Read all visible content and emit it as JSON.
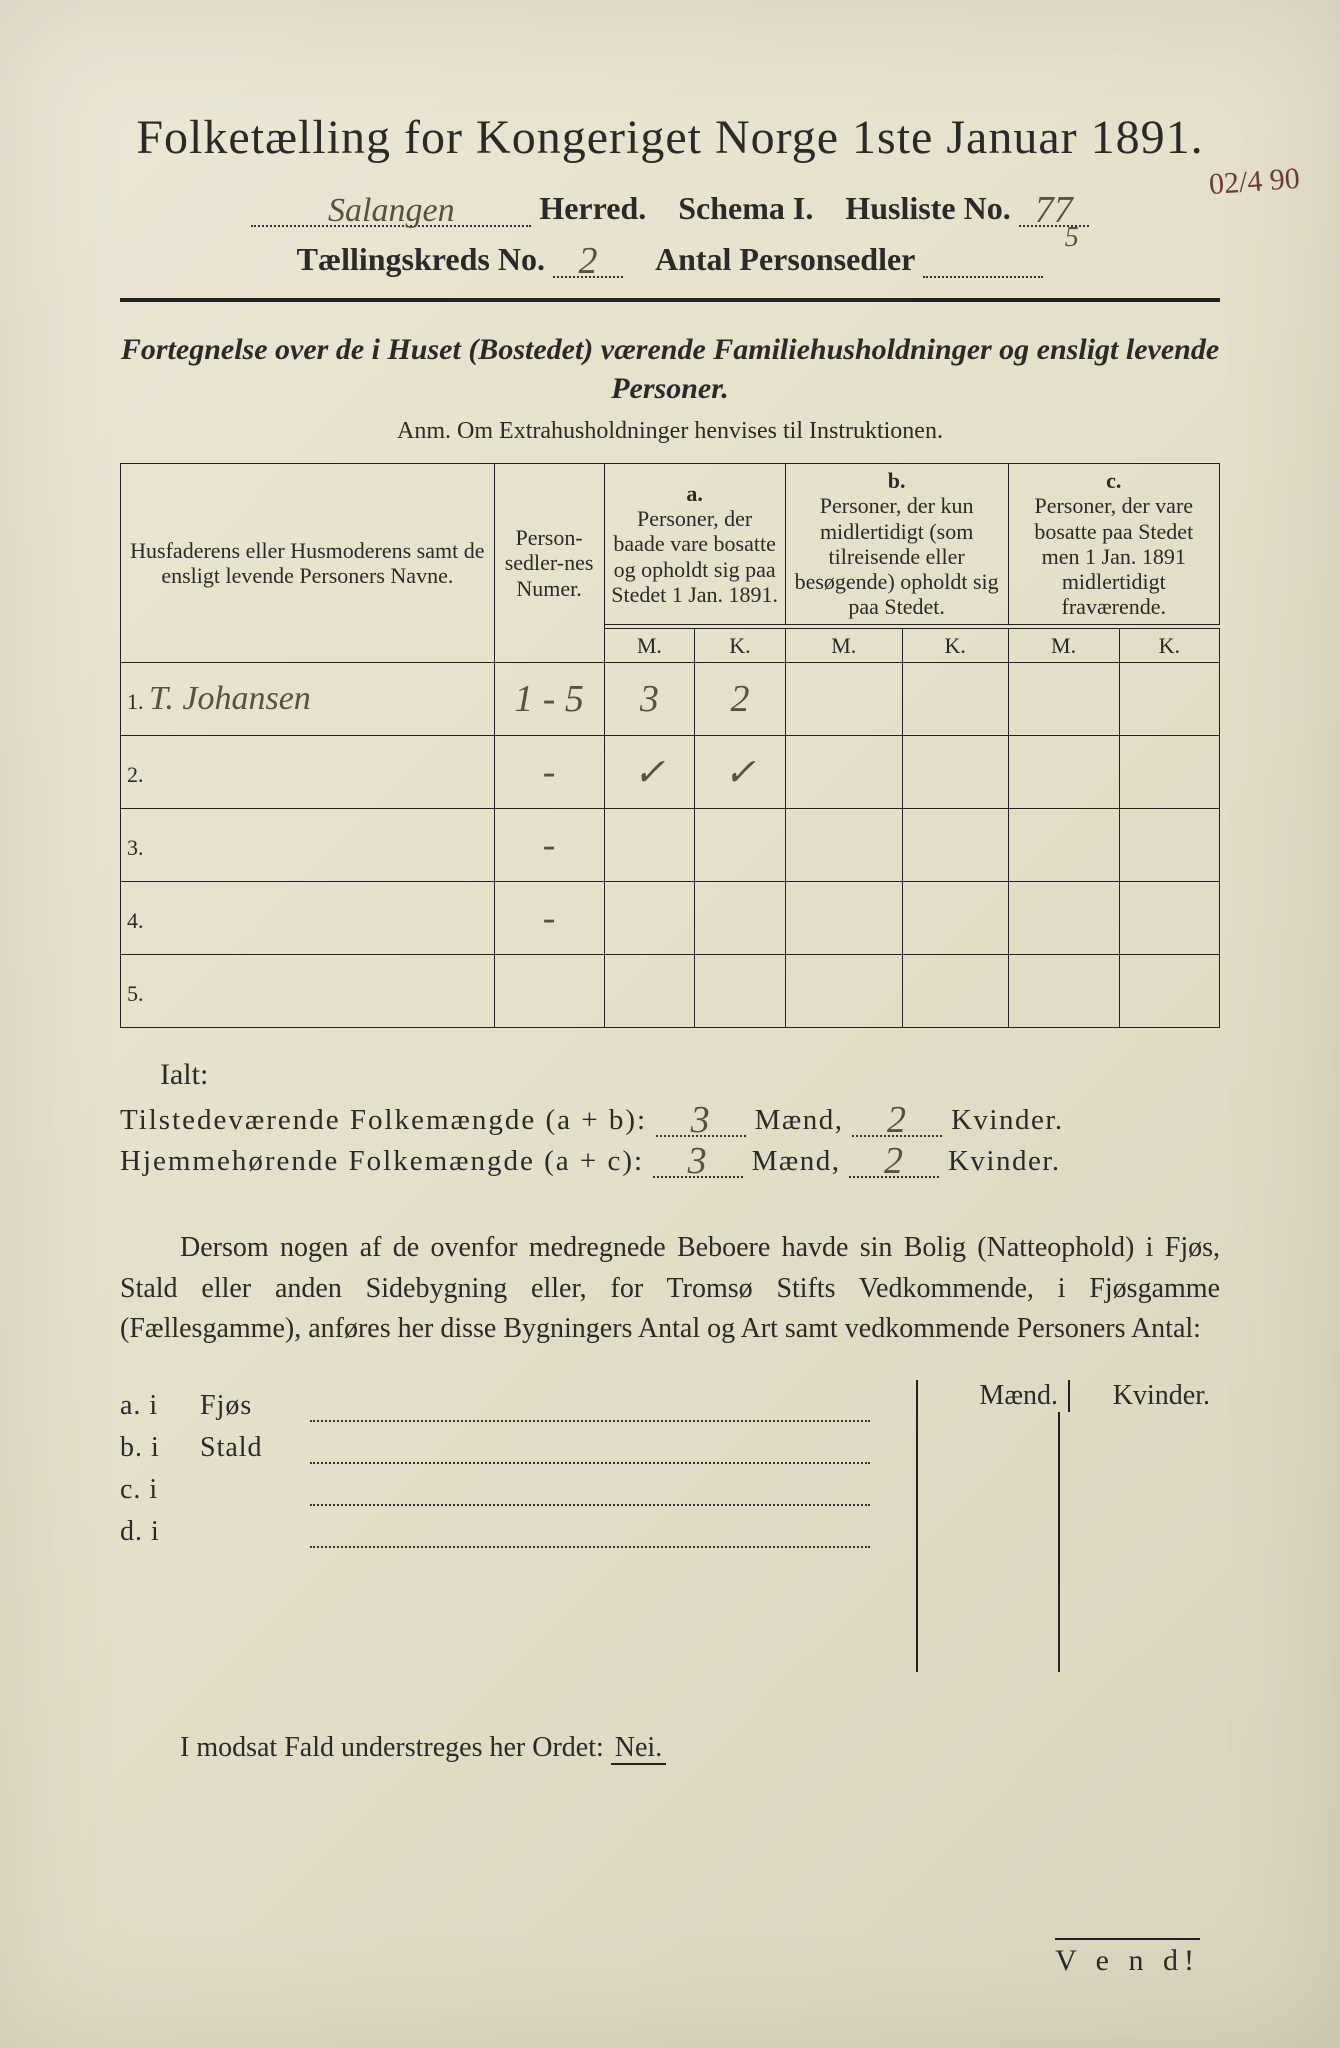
{
  "colors": {
    "paper": "#e8e4d0",
    "ink": "#2a2a2a",
    "handwriting": "#5a5040",
    "margin_note": "#6b3a3a"
  },
  "header": {
    "title": "Folketælling for Kongeriget Norge 1ste Januar 1891.",
    "herred_label": "Herred.",
    "herred_value": "Salangen",
    "schema_label": "Schema I.",
    "husliste_label": "Husliste No.",
    "husliste_value": "77",
    "husliste_sub": "5",
    "kreds_label": "Tællingskreds No.",
    "kreds_value": "2",
    "antal_label": "Antal Personsedler",
    "antal_value": "",
    "margin_note": "02/4 90"
  },
  "intro": {
    "fortegnelse": "Fortegnelse over de i Huset (Bostedet) værende Familiehusholdninger og ensligt levende Personer.",
    "anm": "Anm.  Om Extrahusholdninger henvises til Instruktionen."
  },
  "table": {
    "col_names": "Husfaderens eller Husmoderens samt de ensligt levende Personers Navne.",
    "col_personsedler": "Person-sedler-nes Numer.",
    "col_a_letter": "a.",
    "col_a": "Personer, der baade vare bosatte og opholdt sig paa Stedet 1 Jan. 1891.",
    "col_b_letter": "b.",
    "col_b": "Personer, der kun midlertidigt (som tilreisende eller besøgende) opholdt sig paa Stedet.",
    "col_c_letter": "c.",
    "col_c": "Personer, der vare bosatte paa Stedet men 1 Jan. 1891 midlertidigt fraværende.",
    "m": "M.",
    "k": "K.",
    "rows": [
      {
        "n": "1.",
        "name": "T. Johansen",
        "ps": "1 - 5",
        "am": "3",
        "ak": "2",
        "bm": "",
        "bk": "",
        "cm": "",
        "ck": ""
      },
      {
        "n": "2.",
        "name": "",
        "ps": "-",
        "am": "✓",
        "ak": "✓",
        "bm": "",
        "bk": "",
        "cm": "",
        "ck": ""
      },
      {
        "n": "3.",
        "name": "",
        "ps": "-",
        "am": "",
        "ak": "",
        "bm": "",
        "bk": "",
        "cm": "",
        "ck": ""
      },
      {
        "n": "4.",
        "name": "",
        "ps": "-",
        "am": "",
        "ak": "",
        "bm": "",
        "bk": "",
        "cm": "",
        "ck": ""
      },
      {
        "n": "5.",
        "name": "",
        "ps": "",
        "am": "",
        "ak": "",
        "bm": "",
        "bk": "",
        "cm": "",
        "ck": ""
      }
    ]
  },
  "totals": {
    "ialt": "Ialt:",
    "line1_label": "Tilstedeværende Folkemængde (a + b):",
    "line1_m": "3",
    "line1_k": "2",
    "line2_label": "Hjemmehørende Folkemængde (a + c):",
    "line2_m": "3",
    "line2_k": "2",
    "maend": "Mænd,",
    "kvinder": "Kvinder."
  },
  "dersom": "Dersom nogen af de ovenfor medregnede Beboere havde sin Bolig (Natteophold) i Fjøs, Stald eller anden Sidebygning eller, for Tromsø Stifts Vedkommende, i Fjøsgamme (Fællesgamme), anføres her disse Bygningers Antal og Art samt vedkommende Personers Antal:",
  "byg": {
    "maend": "Mænd.",
    "kvinder": "Kvinder.",
    "rows": [
      {
        "l": "a.  i",
        "t": "Fjøs"
      },
      {
        "l": "b.  i",
        "t": "Stald"
      },
      {
        "l": "c.  i",
        "t": ""
      },
      {
        "l": "d.  i",
        "t": ""
      }
    ]
  },
  "modsat": {
    "text_pre": "I modsat Fald understreges her Ordet: ",
    "nei": "Nei."
  },
  "vend": "V e n d!"
}
